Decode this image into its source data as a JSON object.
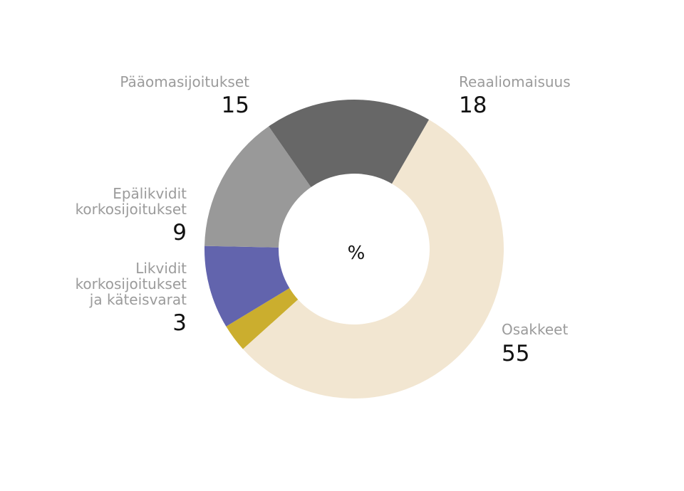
{
  "chart_data": {
    "type": "pie",
    "subtype": "donut",
    "center_label": "%",
    "start_angle_deg": 30,
    "direction": "clockwise",
    "slices": [
      {
        "name": "Osakkeet",
        "value": 55,
        "color": "#f2e6d1"
      },
      {
        "name": "Likvidit korkosijoitukset ja käteisvarat",
        "display_name": "Likvidit\nkorkosijoitukset\nja käteisvarat",
        "value": 3,
        "color": "#cbae2e"
      },
      {
        "name": "Epälikvidit korkosijoitukset",
        "display_name": "Epälikvidit\nkorkosijoitukset",
        "value": 9,
        "color": "#6264ad"
      },
      {
        "name": "Pääomasijoitukset",
        "display_name": "Pääomasijoitukset",
        "value": 15,
        "color": "#999999"
      },
      {
        "name": "Reaaliomaisuus",
        "display_name": "Reaaliomaisuus",
        "value": 18,
        "color": "#676767"
      }
    ]
  },
  "labels": {
    "osakkeet": {
      "name": "Osakkeet",
      "value": "55"
    },
    "likvidit": {
      "name": "Likvidit\nkorkosijoitukset\nja käteisvarat",
      "value": "3"
    },
    "epalikvidit": {
      "name": "Epälikvidit\nkorkosijoitukset",
      "value": "9"
    },
    "paaoma": {
      "name": "Pääomasijoitukset",
      "value": "15"
    },
    "reaali": {
      "name": "Reaaliomaisuus",
      "value": "18"
    }
  }
}
